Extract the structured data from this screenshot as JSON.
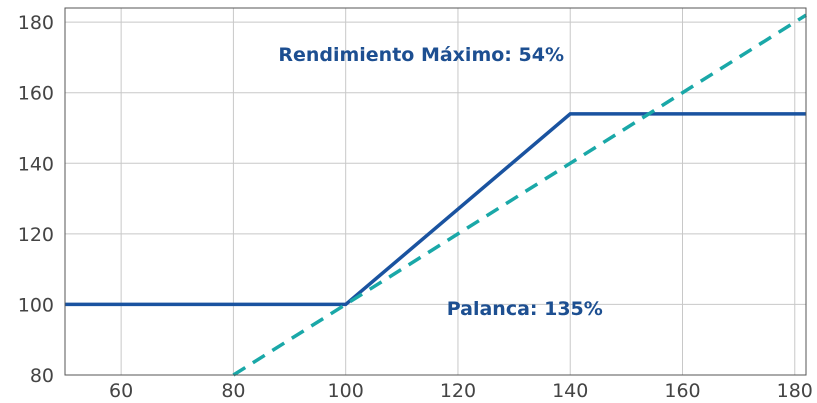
{
  "chart_data": {
    "type": "line",
    "title": "",
    "xlabel": "",
    "ylabel": "",
    "xlim": [
      50,
      182
    ],
    "ylim": [
      80,
      184
    ],
    "grid": true,
    "x_ticks": [
      60,
      80,
      100,
      120,
      140,
      160,
      180
    ],
    "y_ticks": [
      80,
      100,
      120,
      140,
      160,
      180
    ],
    "series": [
      {
        "style": "solid",
        "color": "#1a53a0",
        "points": [
          [
            50,
            100
          ],
          [
            100,
            100
          ],
          [
            140,
            154
          ],
          [
            182,
            154
          ]
        ]
      },
      {
        "style": "dashed",
        "color": "#1aa8a8",
        "points": [
          [
            80,
            80
          ],
          [
            182,
            182
          ]
        ]
      }
    ],
    "annotations": [
      {
        "text": "Rendimiento Máximo: 54%",
        "x": 88,
        "y": 169
      },
      {
        "text": "Palanca: 135%",
        "x": 118,
        "y": 97
      }
    ]
  }
}
